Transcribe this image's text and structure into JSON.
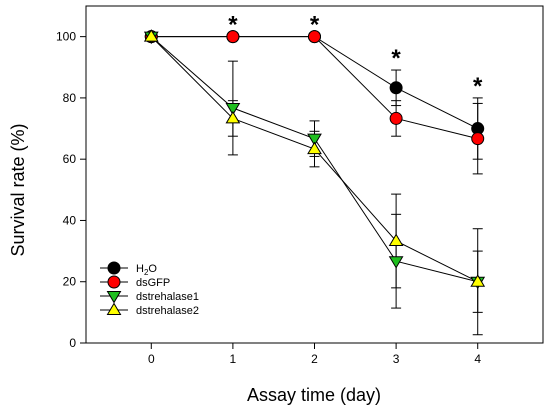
{
  "chart_data": {
    "type": "line",
    "xlabel": "Assay time (day)",
    "ylabel": "Survival rate (%)",
    "x": [
      0,
      1,
      2,
      3,
      4
    ],
    "xlim": [
      -0.8,
      4.8
    ],
    "ylim": [
      0,
      110
    ],
    "xticks": [
      "0",
      "1",
      "2",
      "3",
      "4"
    ],
    "yticks": [
      "0",
      "20",
      "40",
      "60",
      "80",
      "100"
    ],
    "legend_position": "bottom-left",
    "grid": false,
    "significance": [
      {
        "x": 1,
        "label": "*"
      },
      {
        "x": 2,
        "label": "*"
      },
      {
        "x": 3,
        "label": "*"
      },
      {
        "x": 4,
        "label": "*"
      }
    ],
    "series": [
      {
        "name": "H2O",
        "legend_main": "H",
        "legend_sub": "2",
        "legend_tail": "O",
        "marker": "circle",
        "color": "#000000",
        "values": [
          100,
          100,
          100,
          83.3,
          70
        ],
        "errors": [
          0,
          0,
          0,
          5.8,
          10
        ]
      },
      {
        "name": "dsGFP",
        "legend_main": "dsGFP",
        "legend_sub": "",
        "legend_tail": "",
        "marker": "circle",
        "color": "#ff0000",
        "values": [
          100,
          100,
          100,
          73.3,
          66.7
        ],
        "errors": [
          0,
          0,
          0,
          5.8,
          11.5
        ]
      },
      {
        "name": "dstrehalase1",
        "legend_main": "dstrehalase1",
        "legend_sub": "",
        "legend_tail": "",
        "marker": "triangle-down",
        "color": "#1fbf1f",
        "values": [
          100,
          76.7,
          66.7,
          26.7,
          20
        ],
        "errors": [
          0,
          15.3,
          5.8,
          15.3,
          17.3
        ]
      },
      {
        "name": "dstrehalase2",
        "legend_main": "dstrehalase2",
        "legend_sub": "",
        "legend_tail": "",
        "marker": "triangle-up",
        "color": "#ffff00",
        "values": [
          100,
          73.3,
          63.3,
          33.3,
          20
        ],
        "errors": [
          0,
          5.8,
          5.8,
          15.3,
          10
        ]
      }
    ]
  }
}
